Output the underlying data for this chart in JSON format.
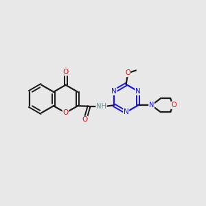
{
  "bg_color": "#e8e8e8",
  "bond_color": "#1a1a1a",
  "nitrogen_color": "#1515dd",
  "oxygen_color": "#cc1111",
  "nh_color": "#5a9898",
  "figsize": [
    3.0,
    3.0
  ],
  "dpi": 100,
  "xlim": [
    0,
    10
  ],
  "ylim": [
    0,
    10
  ]
}
